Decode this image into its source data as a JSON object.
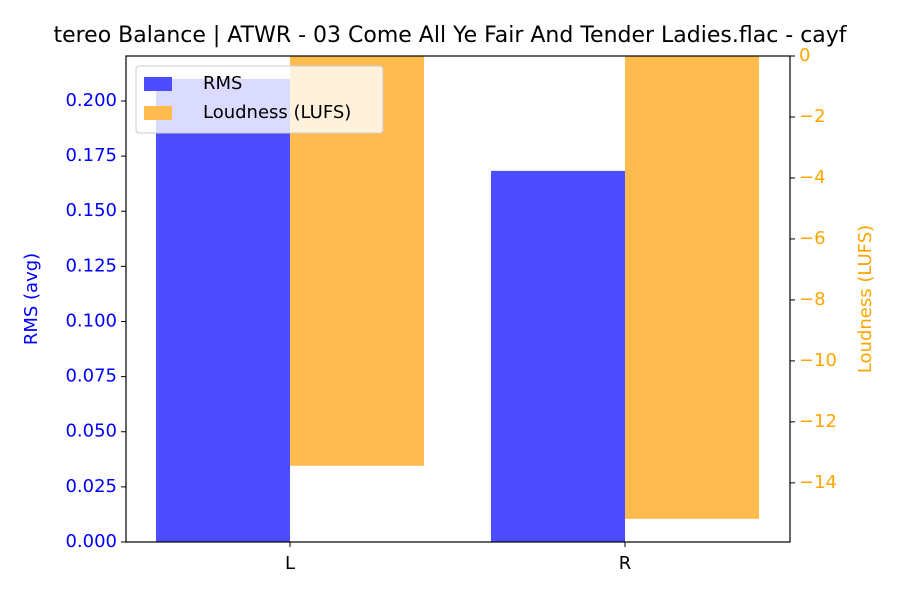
{
  "chart_data": {
    "type": "bar",
    "title": "tereo Balance | ATWR - 03 Come All Ye Fair And Tender Ladies.flac - cayf",
    "categories": [
      "L",
      "R"
    ],
    "ylabel": "RMS (avg)",
    "y2label": "Loudness (LUFS)",
    "series": [
      {
        "name": "RMS",
        "color": "#4d4dff",
        "values": [
          0.21,
          0.1683
        ]
      },
      {
        "name": "Loudness (LUFS)",
        "color": "#ffbb4d",
        "axis": "y2",
        "values": [
          -13.44,
          -15.18
        ]
      }
    ],
    "ylim": [
      0,
      0.2204
    ],
    "yticks": [
      {
        "value": 0,
        "label": "0.000"
      },
      {
        "value": 0.025,
        "label": "0.025"
      },
      {
        "value": 0.05,
        "label": "0.050"
      },
      {
        "value": 0.075,
        "label": "0.075"
      },
      {
        "value": 0.1,
        "label": "0.100"
      },
      {
        "value": 0.125,
        "label": "0.125"
      },
      {
        "value": 0.15,
        "label": "0.150"
      },
      {
        "value": 0.175,
        "label": "0.175"
      },
      {
        "value": 0.2,
        "label": "0.200"
      }
    ],
    "y2lim": [
      -15.94,
      0
    ],
    "y2ticks": [
      0,
      {
        "value": -2,
        "label": "−2"
      },
      {
        "value": -4,
        "label": "−4"
      },
      {
        "value": -6,
        "label": "−6"
      },
      {
        "value": -8,
        "label": "−8"
      },
      {
        "value": -10,
        "label": "−10"
      },
      {
        "value": -12,
        "label": "−12"
      },
      {
        "value": -14,
        "label": "−14"
      }
    ],
    "ytick_color": "#0000ff",
    "y2tick_color": "#ffa500",
    "legend": "upper-left"
  }
}
